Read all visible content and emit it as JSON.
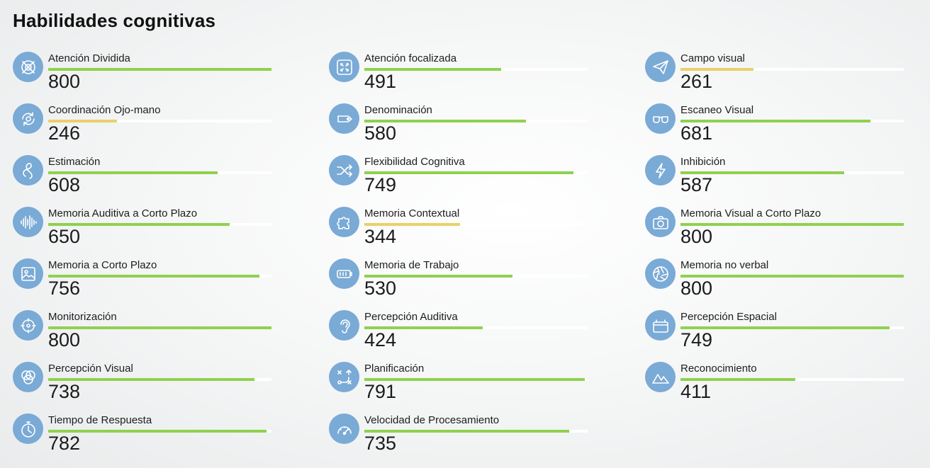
{
  "page": {
    "title": "Habilidades cognitivas"
  },
  "colors": {
    "icon_bg": "#7aaad6",
    "bar_high": "#8fd14f",
    "bar_low": "#ead06b",
    "track": "#ffffff"
  },
  "score_max": 800,
  "skills": [
    {
      "name": "Atención Dividida",
      "score": "800",
      "icon": "crossed-circle-icon"
    },
    {
      "name": "Atención focalizada",
      "score": "491",
      "icon": "focus-arrows-icon"
    },
    {
      "name": "Campo visual",
      "score": "261",
      "icon": "paper-plane-icon"
    },
    {
      "name": "Coordinación Ojo-mano",
      "score": "246",
      "icon": "rotate-icon"
    },
    {
      "name": "Denominación",
      "score": "580",
      "icon": "tag-icon"
    },
    {
      "name": "Escaneo Visual",
      "score": "681",
      "icon": "glasses-icon"
    },
    {
      "name": "Estimación",
      "score": "608",
      "icon": "squiggle-icon"
    },
    {
      "name": "Flexibilidad Cognitiva",
      "score": "749",
      "icon": "shuffle-icon"
    },
    {
      "name": "Inhibición",
      "score": "587",
      "icon": "lightning-icon"
    },
    {
      "name": "Memoria Auditiva a Corto Plazo",
      "score": "650",
      "icon": "soundwave-icon"
    },
    {
      "name": "Memoria Contextual",
      "score": "344",
      "icon": "puzzle-icon"
    },
    {
      "name": "Memoria Visual a Corto Plazo",
      "score": "800",
      "icon": "camera-icon"
    },
    {
      "name": "Memoria a Corto Plazo",
      "score": "756",
      "icon": "picture-icon"
    },
    {
      "name": "Memoria de Trabajo",
      "score": "530",
      "icon": "battery-icon"
    },
    {
      "name": "Memoria no verbal",
      "score": "800",
      "icon": "aperture-icon"
    },
    {
      "name": "Monitorización",
      "score": "800",
      "icon": "target-arrows-icon"
    },
    {
      "name": "Percepción Auditiva",
      "score": "424",
      "icon": "ear-icon"
    },
    {
      "name": "Percepción Espacial",
      "score": "749",
      "icon": "box-icon"
    },
    {
      "name": "Percepción Visual",
      "score": "738",
      "icon": "venn-circles-icon"
    },
    {
      "name": "Planificación",
      "score": "791",
      "icon": "tactics-icon"
    },
    {
      "name": "Reconocimiento",
      "score": "411",
      "icon": "mountains-icon"
    },
    {
      "name": "Tiempo de Respuesta",
      "score": "782",
      "icon": "stopwatch-icon"
    },
    {
      "name": "Velocidad de Procesamiento",
      "score": "735",
      "icon": "speedometer-icon"
    }
  ]
}
